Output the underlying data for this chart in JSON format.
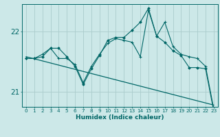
{
  "xlabel": "Humidex (Indice chaleur)",
  "background_color": "#cce8e8",
  "grid_color": "#aacccc",
  "line_color": "#006666",
  "x_values": [
    0,
    1,
    2,
    3,
    4,
    5,
    6,
    7,
    8,
    9,
    10,
    11,
    12,
    13,
    14,
    15,
    16,
    17,
    18,
    19,
    20,
    21,
    22,
    23
  ],
  "y_jagged": [
    21.55,
    21.55,
    21.62,
    21.72,
    21.55,
    21.55,
    21.45,
    21.15,
    21.42,
    21.62,
    21.8,
    21.88,
    21.85,
    21.82,
    21.58,
    22.35,
    21.92,
    22.15,
    21.75,
    21.62,
    21.58,
    21.55,
    21.42,
    20.72
  ],
  "y_smooth": [
    21.55,
    21.55,
    21.58,
    21.72,
    21.72,
    21.58,
    21.42,
    21.12,
    21.38,
    21.6,
    21.85,
    21.9,
    21.9,
    22.02,
    22.15,
    22.38,
    21.92,
    21.82,
    21.68,
    21.6,
    21.4,
    21.4,
    21.38,
    20.68
  ],
  "y_regression_start": 21.58,
  "y_regression_end": 20.78,
  "xlim": [
    -0.5,
    23.5
  ],
  "ylim": [
    20.75,
    22.45
  ],
  "yticks": [
    21,
    22
  ],
  "xticks": [
    0,
    1,
    2,
    3,
    4,
    5,
    6,
    7,
    8,
    9,
    10,
    11,
    12,
    13,
    14,
    15,
    16,
    17,
    18,
    19,
    20,
    21,
    22,
    23
  ],
  "xtick_fontsize": 5.2,
  "ytick_fontsize": 7.5,
  "xlabel_fontsize": 6.5
}
